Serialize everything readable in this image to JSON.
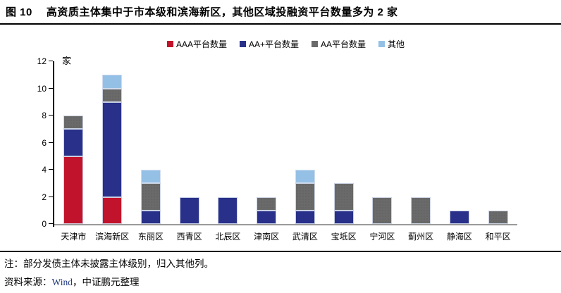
{
  "figure": {
    "label": "图 10",
    "title": "高资质主体集中于市本级和滨海新区，其他区域投融资平台数量多为 2 家"
  },
  "notes": {
    "note": "注：部分发债主体未披露主体级别，归入其他列。",
    "source_prefix": "资料来源：",
    "source_wind": "Wind",
    "source_suffix": "，中证鹏元整理"
  },
  "colors": {
    "aaa_red": "#c1132b",
    "aaplus_navy": "#283089",
    "aa_gray": "#6a6a6a",
    "other_lightblue": "#95c0e6",
    "axis_black": "#000000",
    "baseline_gray": "#9a9a9a",
    "wind_navy": "#223a7e"
  },
  "chart_data": {
    "type": "bar",
    "stacked": true,
    "title": "高资质主体集中于市本级和滨海新区，其他区域投融资平台数量多为 2 家",
    "xlabel": "",
    "ylabel": "家",
    "ylim": [
      0,
      12
    ],
    "ytick_step": 2,
    "grid": false,
    "legend_position": "top-center",
    "categories": [
      "天津市",
      "滨海新区",
      "东丽区",
      "西青区",
      "北辰区",
      "津南区",
      "武清区",
      "宝坻区",
      "宁河区",
      "蓟州区",
      "静海区",
      "和平区"
    ],
    "series": [
      {
        "name": "AAA平台数量",
        "color": "#c1132b",
        "pattern": "solid",
        "values": [
          5,
          2,
          0,
          0,
          0,
          0,
          0,
          0,
          0,
          0,
          0,
          0
        ]
      },
      {
        "name": "AA+平台数量",
        "color": "#283089",
        "pattern": "solid",
        "values": [
          2,
          7,
          1,
          2,
          2,
          1,
          1,
          1,
          0,
          0,
          1,
          0
        ]
      },
      {
        "name": "AA平台数量",
        "color": "#6a6a6a",
        "pattern": "dots",
        "values": [
          1,
          1,
          2,
          0,
          0,
          1,
          2,
          2,
          2,
          2,
          0,
          1
        ]
      },
      {
        "name": "其他",
        "color": "#95c0e6",
        "pattern": "solid",
        "values": [
          0,
          1,
          1,
          0,
          0,
          0,
          1,
          0,
          0,
          0,
          0,
          0
        ]
      }
    ],
    "totals": [
      8,
      11,
      4,
      2,
      2,
      2,
      4,
      3,
      2,
      2,
      1,
      1
    ]
  }
}
